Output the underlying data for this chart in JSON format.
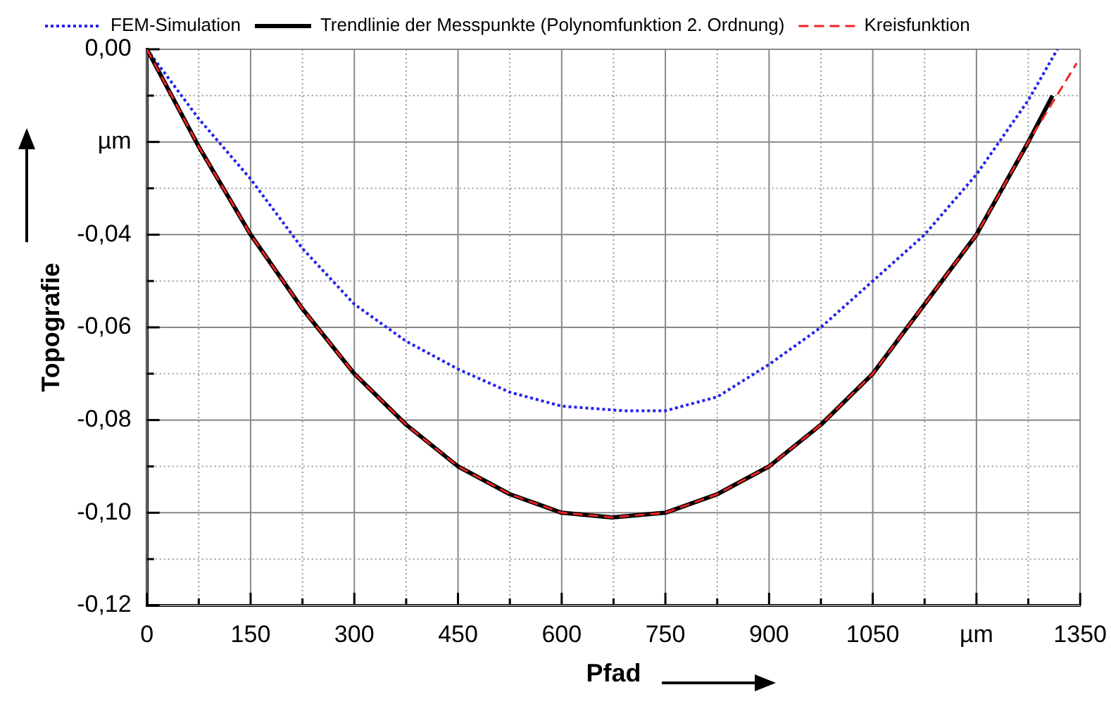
{
  "chart_data": {
    "type": "line",
    "xlabel": "Pfad",
    "ylabel": "Topografie",
    "xlim": [
      0,
      1350
    ],
    "ylim": [
      -0.12,
      0
    ],
    "xticks": [
      0,
      {
        "value": 75,
        "label": null
      },
      150,
      {
        "value": 225,
        "label": null
      },
      300,
      {
        "value": 375,
        "label": null
      },
      450,
      {
        "value": 525,
        "label": null
      },
      600,
      {
        "value": 675,
        "label": null
      },
      750,
      {
        "value": 825,
        "label": null
      },
      900,
      {
        "value": 975,
        "label": null
      },
      1050,
      {
        "value": 1125,
        "label": null
      },
      {
        "value": 1200,
        "label": "µm"
      },
      {
        "value": 1275,
        "label": null
      },
      1350
    ],
    "yticks": [
      {
        "value": -0.12,
        "label": "-0,12"
      },
      {
        "value": -0.11,
        "label": null
      },
      {
        "value": -0.1,
        "label": "-0,10"
      },
      {
        "value": -0.09,
        "label": null
      },
      {
        "value": -0.08,
        "label": "-0,08"
      },
      {
        "value": -0.07,
        "label": null
      },
      {
        "value": -0.06,
        "label": "-0,06"
      },
      {
        "value": -0.05,
        "label": null
      },
      {
        "value": -0.04,
        "label": "-0,04"
      },
      {
        "value": -0.03,
        "label": null
      },
      {
        "value": -0.02,
        "label": "µm"
      },
      {
        "value": -0.01,
        "label": null
      },
      {
        "value": 0,
        "label": "0,00"
      }
    ],
    "grid": true,
    "legend": "top",
    "marker": "none",
    "series": [
      {
        "name": "FEM-Simulation",
        "color": "#2222ee",
        "line_style": "dotted",
        "x": [
          0,
          75,
          150,
          225,
          300,
          375,
          450,
          525,
          600,
          690,
          750,
          825,
          900,
          975,
          1050,
          1125,
          1200,
          1275,
          1317
        ],
        "values": [
          0,
          -0.015,
          -0.028,
          -0.043,
          -0.055,
          -0.063,
          -0.069,
          -0.074,
          -0.077,
          -0.078,
          -0.078,
          -0.075,
          -0.068,
          -0.06,
          -0.05,
          -0.04,
          -0.027,
          -0.011,
          0
        ]
      },
      {
        "name": "Trendlinie der Messpunkte (Polynomfunktion 2. Ordnung)",
        "color": "#000000",
        "line_style": "solid",
        "x": [
          0,
          75,
          150,
          225,
          300,
          375,
          450,
          525,
          600,
          673,
          750,
          825,
          900,
          975,
          1050,
          1125,
          1200,
          1275,
          1310
        ],
        "values": [
          0,
          -0.021,
          -0.04,
          -0.056,
          -0.07,
          -0.081,
          -0.09,
          -0.096,
          -0.1,
          -0.101,
          -0.1,
          -0.096,
          -0.09,
          -0.081,
          -0.07,
          -0.055,
          -0.04,
          -0.02,
          -0.01
        ]
      },
      {
        "name": "Kreisfunktion",
        "color": "#ee2222",
        "line_style": "dashed",
        "x": [
          0,
          75,
          150,
          225,
          300,
          375,
          450,
          525,
          600,
          673,
          750,
          825,
          900,
          975,
          1050,
          1125,
          1200,
          1275,
          1345
        ],
        "values": [
          0,
          -0.021,
          -0.04,
          -0.056,
          -0.07,
          -0.081,
          -0.09,
          -0.096,
          -0.1,
          -0.101,
          -0.1,
          -0.096,
          -0.09,
          -0.081,
          -0.07,
          -0.055,
          -0.04,
          -0.02,
          -0.003
        ]
      }
    ]
  }
}
